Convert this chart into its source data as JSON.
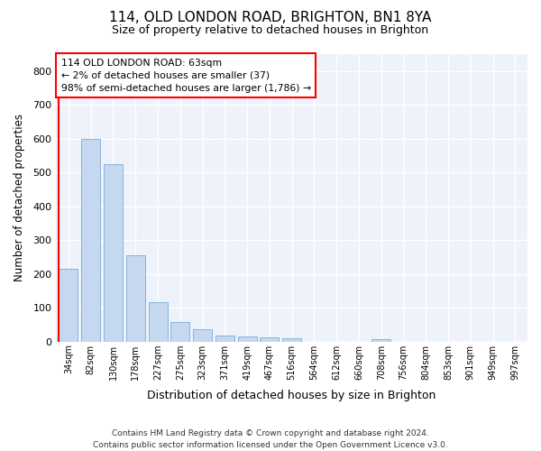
{
  "title_line1": "114, OLD LONDON ROAD, BRIGHTON, BN1 8YA",
  "title_line2": "Size of property relative to detached houses in Brighton",
  "xlabel": "Distribution of detached houses by size in Brighton",
  "ylabel": "Number of detached properties",
  "bar_color": "#c5d8f0",
  "bar_edge_color": "#7aadd4",
  "background_color": "#eef2fb",
  "grid_color": "#ffffff",
  "categories": [
    "34sqm",
    "82sqm",
    "130sqm",
    "178sqm",
    "227sqm",
    "275sqm",
    "323sqm",
    "371sqm",
    "419sqm",
    "467sqm",
    "516sqm",
    "564sqm",
    "612sqm",
    "660sqm",
    "708sqm",
    "756sqm",
    "804sqm",
    "853sqm",
    "901sqm",
    "949sqm",
    "997sqm"
  ],
  "values": [
    215,
    600,
    525,
    255,
    117,
    57,
    35,
    18,
    16,
    13,
    10,
    0,
    0,
    0,
    7,
    0,
    0,
    0,
    0,
    0,
    0
  ],
  "ylim": [
    0,
    850
  ],
  "yticks": [
    0,
    100,
    200,
    300,
    400,
    500,
    600,
    700,
    800
  ],
  "annotation_text_line1": "114 OLD LONDON ROAD: 63sqm",
  "annotation_text_line2": "← 2% of detached houses are smaller (37)",
  "annotation_text_line3": "98% of semi-detached houses are larger (1,786) →",
  "footer_line1": "Contains HM Land Registry data © Crown copyright and database right 2024.",
  "footer_line2": "Contains public sector information licensed under the Open Government Licence v3.0."
}
